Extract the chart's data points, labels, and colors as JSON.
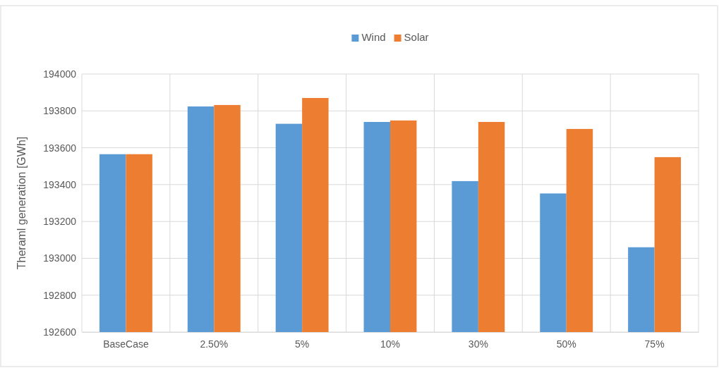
{
  "chart_data": {
    "type": "bar",
    "ylabel": "Theraml generation [GWh]",
    "categories": [
      "BaseCase",
      "2.50%",
      "5%",
      "10%",
      "30%",
      "50%",
      "75%"
    ],
    "series": [
      {
        "name": "Wind",
        "color": "#5b9bd5",
        "values": [
          193565,
          193824,
          193730,
          193740,
          193419,
          193352,
          193060
        ]
      },
      {
        "name": "Solar",
        "color": "#ed7d31",
        "values": [
          193565,
          193832,
          193870,
          193748,
          193740,
          193702,
          193549
        ]
      }
    ],
    "ylim": [
      192600,
      194000
    ],
    "yticks": [
      192600,
      192800,
      193000,
      193200,
      193400,
      193600,
      193800,
      194000
    ],
    "grid": true,
    "legend": "top"
  }
}
